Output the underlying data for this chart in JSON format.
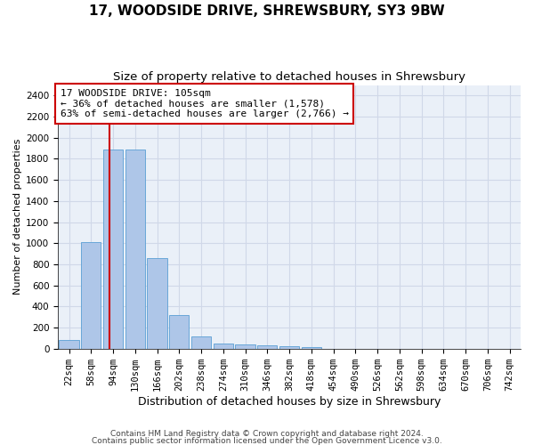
{
  "title": "17, WOODSIDE DRIVE, SHREWSBURY, SY3 9BW",
  "subtitle": "Size of property relative to detached houses in Shrewsbury",
  "xlabel": "Distribution of detached houses by size in Shrewsbury",
  "ylabel": "Number of detached properties",
  "footer_line1": "Contains HM Land Registry data © Crown copyright and database right 2024.",
  "footer_line2": "Contains public sector information licensed under the Open Government Licence v3.0.",
  "bar_labels": [
    "22sqm",
    "58sqm",
    "94sqm",
    "130sqm",
    "166sqm",
    "202sqm",
    "238sqm",
    "274sqm",
    "310sqm",
    "346sqm",
    "382sqm",
    "418sqm",
    "454sqm",
    "490sqm",
    "526sqm",
    "562sqm",
    "598sqm",
    "634sqm",
    "670sqm",
    "706sqm",
    "742sqm"
  ],
  "bar_values": [
    85,
    1010,
    1890,
    1890,
    860,
    315,
    115,
    50,
    40,
    35,
    20,
    15,
    0,
    0,
    0,
    0,
    0,
    0,
    0,
    0,
    0
  ],
  "bar_color": "#aec6e8",
  "bar_edge_color": "#5a9fd4",
  "vline_color": "#cc0000",
  "annotation_text": "17 WOODSIDE DRIVE: 105sqm\n← 36% of detached houses are smaller (1,578)\n63% of semi-detached houses are larger (2,766) →",
  "annotation_box_color": "#ffffff",
  "annotation_box_edgecolor": "#cc0000",
  "ylim": [
    0,
    2500
  ],
  "yticks": [
    0,
    200,
    400,
    600,
    800,
    1000,
    1200,
    1400,
    1600,
    1800,
    2000,
    2200,
    2400
  ],
  "grid_color": "#d0d8e8",
  "bg_color": "#eaf0f8",
  "title_fontsize": 11,
  "subtitle_fontsize": 9.5,
  "ylabel_fontsize": 8,
  "xlabel_fontsize": 9,
  "tick_fontsize": 7.5,
  "footer_fontsize": 6.5,
  "annotation_fontsize": 8
}
